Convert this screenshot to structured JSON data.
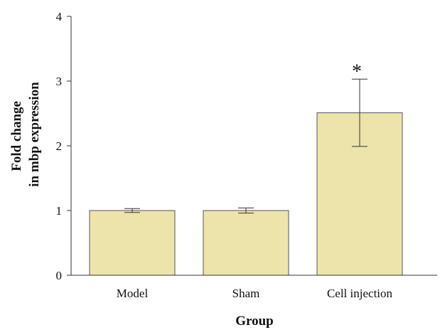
{
  "chart_data": {
    "type": "bar",
    "categories": [
      "Model",
      "Sham",
      "Cell injection"
    ],
    "values": [
      1.0,
      1.0,
      2.51
    ],
    "error_bars": [
      0.03,
      0.04,
      0.52
    ],
    "annotations": [
      {
        "category": "Cell injection",
        "text": "*"
      }
    ],
    "xlabel": "Group",
    "ylabel_lines": [
      "Fold change",
      "in mbp expression"
    ],
    "ylim": [
      0,
      4
    ],
    "yticks": [
      0,
      1,
      2,
      3,
      4
    ],
    "grid": false,
    "colors": {
      "bar_fill": "#ece4aa",
      "bar_stroke": "#555555",
      "axis": "#333333"
    }
  }
}
